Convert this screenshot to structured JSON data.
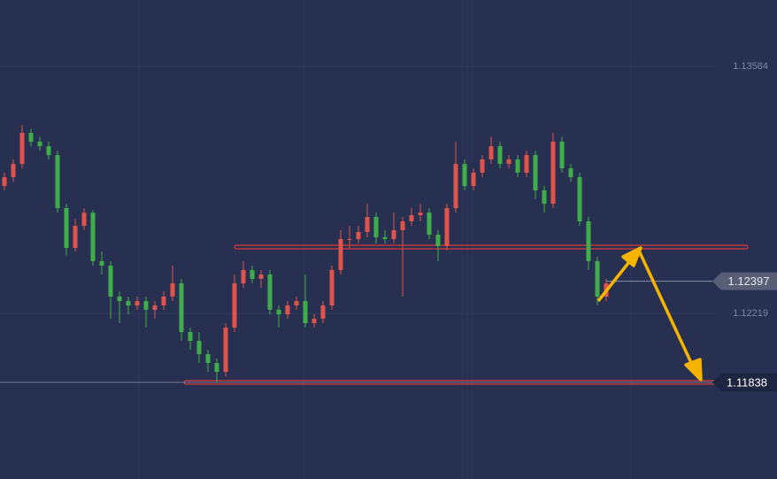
{
  "chart_data": {
    "type": "candlestick",
    "open": [
      1.12923,
      1.12972,
      1.13045,
      1.13217,
      1.13168,
      1.13143,
      1.13094,
      1.12801,
      1.12581,
      1.12703,
      1.12776,
      1.12508,
      1.12483,
      1.12312,
      1.12287,
      1.12263,
      1.12287,
      1.12239,
      1.12263,
      1.12312,
      1.12385,
      1.12116,
      1.12067,
      1.11994,
      1.11945,
      1.11896,
      1.12141,
      1.12385,
      1.12459,
      1.1241,
      1.12434,
      1.12239,
      1.12214,
      1.12263,
      1.12287,
      1.12165,
      1.1219,
      1.12263,
      1.12459,
      1.1263,
      1.1263,
      1.12669,
      1.12752,
      1.1264,
      1.1263,
      1.12679,
      1.12728,
      1.12762,
      1.12776,
      1.12654,
      1.12591,
      1.12801,
      1.13045,
      1.12923,
      1.12997,
      1.1307,
      1.13143,
      1.13045,
      1.1307,
      1.12997,
      1.13094,
      1.12899,
      1.12825,
      1.13168,
      1.13021,
      1.12972,
      1.12728,
      1.12508,
      1.12312
    ],
    "high": [
      1.12997,
      1.1307,
      1.1326,
      1.1324,
      1.13195,
      1.13168,
      1.13118,
      1.12825,
      1.1274,
      1.128,
      1.1279,
      1.1256,
      1.12508,
      1.1234,
      1.12312,
      1.12312,
      1.12312,
      1.12287,
      1.1234,
      1.12483,
      1.1241,
      1.12141,
      1.12116,
      1.12018,
      1.1197,
      1.12165,
      1.12434,
      1.12508,
      1.12483,
      1.12459,
      1.12459,
      1.12263,
      1.12287,
      1.12312,
      1.12434,
      1.12214,
      1.12287,
      1.12483,
      1.12679,
      1.12703,
      1.12703,
      1.12825,
      1.12776,
      1.12679,
      1.12776,
      1.12752,
      1.12801,
      1.12825,
      1.12801,
      1.12679,
      1.12825,
      1.13168,
      1.1307,
      1.1302,
      1.13094,
      1.13195,
      1.13168,
      1.13094,
      1.13094,
      1.13118,
      1.13118,
      1.12923,
      1.13217,
      1.13195,
      1.13045,
      1.12997,
      1.12752,
      1.12532,
      1.1241
    ],
    "low": [
      1.12899,
      1.12947,
      1.1302,
      1.13143,
      1.13118,
      1.1307,
      1.12776,
      1.1254,
      1.1256,
      1.1268,
      1.12483,
      1.12434,
      1.1219,
      1.12165,
      1.12214,
      1.12239,
      1.12141,
      1.1219,
      1.12239,
      1.12287,
      1.12067,
      1.12018,
      1.11945,
      1.11896,
      1.11838,
      1.1187,
      1.12116,
      1.1236,
      1.12385,
      1.1236,
      1.12214,
      1.12141,
      1.1219,
      1.12239,
      1.12141,
      1.12141,
      1.12165,
      1.12239,
      1.12434,
      1.12581,
      1.12605,
      1.1264,
      1.12605,
      1.12605,
      1.12605,
      1.12312,
      1.12703,
      1.12728,
      1.1263,
      1.12508,
      1.12567,
      1.12776,
      1.12899,
      1.12899,
      1.12972,
      1.13045,
      1.1302,
      1.1302,
      1.12972,
      1.12972,
      1.1285,
      1.12776,
      1.12801,
      1.12997,
      1.12947,
      1.12703,
      1.12459,
      1.12263,
      1.12287
    ],
    "close": [
      1.12972,
      1.13045,
      1.13217,
      1.13168,
      1.13143,
      1.13094,
      1.12801,
      1.12581,
      1.12703,
      1.12776,
      1.12508,
      1.12483,
      1.12312,
      1.12287,
      1.12263,
      1.12287,
      1.12239,
      1.12263,
      1.12312,
      1.12385,
      1.12116,
      1.12067,
      1.11994,
      1.11945,
      1.11896,
      1.12141,
      1.12385,
      1.12459,
      1.1241,
      1.12434,
      1.12239,
      1.12214,
      1.12263,
      1.12287,
      1.12165,
      1.1219,
      1.12263,
      1.12459,
      1.1263,
      1.1263,
      1.12669,
      1.12752,
      1.1264,
      1.1263,
      1.12679,
      1.12728,
      1.12762,
      1.12776,
      1.12654,
      1.12591,
      1.12801,
      1.13045,
      1.12923,
      1.12997,
      1.1307,
      1.13143,
      1.13045,
      1.1307,
      1.12997,
      1.13094,
      1.12899,
      1.12825,
      1.13168,
      1.13021,
      1.12972,
      1.12728,
      1.12508,
      1.12312,
      1.12385
    ],
    "up_color": "#e0544c",
    "down_color": "#3fae4a",
    "ylim": [
      1.11304,
      1.13951
    ],
    "yticks": [
      1.13584,
      1.12219
    ],
    "levels": [
      1.12586,
      1.11838
    ],
    "level_color": "#d9393a",
    "current_price": 1.12397,
    "target_price": 1.11838
  }
}
